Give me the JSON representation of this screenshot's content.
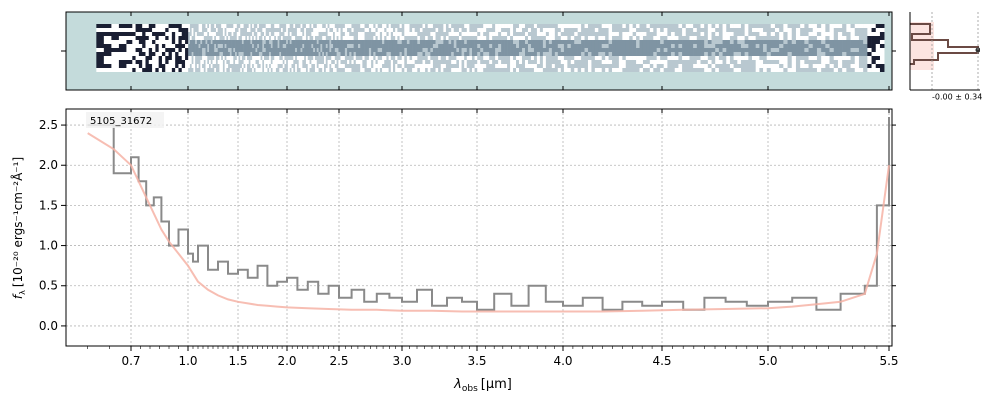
{
  "chart_data": [
    {
      "type": "image",
      "panel": "2d-spectrum",
      "colormap": [
        "#c4dbdb",
        "#ffffff",
        "#1a1f33"
      ],
      "background": "#c4dbdb",
      "xlim": [
        0.55,
        5.55
      ]
    },
    {
      "type": "line",
      "panel": "profile",
      "annotation": "-0.00 ± 0.34",
      "colors": {
        "profile": "#6b4a44",
        "fill": "#f6b3a6"
      }
    },
    {
      "type": "line",
      "panel": "1d-spectrum",
      "object_label": "5105_31672",
      "xlabel_prefix": "λ",
      "xlabel_sub": "obs",
      "xlabel_unit": "[μm]",
      "ylabel_prefix": "f",
      "ylabel_sub": "λ",
      "ylabel_unit": "[10⁻²⁰ ergs⁻¹cm⁻²Å⁻¹]",
      "xscale": "piecewise (dense at short wavelengths)",
      "xlim": [
        0.55,
        5.55
      ],
      "ylim": [
        -0.25,
        2.7
      ],
      "xticks": [
        "0.7",
        "1.0",
        "1.5",
        "2.0",
        "2.5",
        "3.0",
        "3.5",
        "4.0",
        "4.5",
        "5.0",
        "5.5"
      ],
      "yticks": [
        "0.0",
        "0.5",
        "1.0",
        "1.5",
        "2.0",
        "2.5"
      ],
      "grid": true,
      "series": [
        {
          "color": "#8a8a8a",
          "style": "steps",
          "x": [
            0.6,
            0.66,
            0.7,
            0.74,
            0.78,
            0.82,
            0.86,
            0.9,
            0.95,
            1.0,
            1.05,
            1.1,
            1.2,
            1.3,
            1.4,
            1.5,
            1.6,
            1.7,
            1.8,
            1.9,
            2.0,
            2.1,
            2.2,
            2.3,
            2.4,
            2.5,
            2.6,
            2.7,
            2.8,
            2.9,
            3.0,
            3.1,
            3.2,
            3.3,
            3.4,
            3.5,
            3.6,
            3.7,
            3.8,
            3.9,
            4.0,
            4.1,
            4.2,
            4.3,
            4.4,
            4.5,
            4.6,
            4.7,
            4.8,
            4.9,
            5.0,
            5.1,
            5.2,
            5.3,
            5.4,
            5.45,
            5.5
          ],
          "y": [
            2.5,
            1.9,
            2.1,
            1.8,
            1.5,
            1.6,
            1.3,
            1.0,
            1.2,
            0.9,
            0.8,
            1.0,
            0.7,
            0.8,
            0.65,
            0.7,
            0.6,
            0.75,
            0.5,
            0.55,
            0.6,
            0.45,
            0.55,
            0.4,
            0.5,
            0.35,
            0.45,
            0.3,
            0.4,
            0.35,
            0.3,
            0.45,
            0.25,
            0.35,
            0.3,
            0.2,
            0.4,
            0.25,
            0.5,
            0.3,
            0.25,
            0.35,
            0.2,
            0.3,
            0.25,
            0.3,
            0.2,
            0.35,
            0.3,
            0.25,
            0.3,
            0.35,
            0.2,
            0.4,
            0.5,
            1.5,
            2.6
          ]
        },
        {
          "color": "#f6b3a6",
          "style": "line",
          "x": [
            0.6,
            0.66,
            0.7,
            0.74,
            0.78,
            0.82,
            0.86,
            0.9,
            0.95,
            1.0,
            1.05,
            1.1,
            1.2,
            1.3,
            1.4,
            1.5,
            1.6,
            1.7,
            1.8,
            1.9,
            2.0,
            2.2,
            2.4,
            2.6,
            2.8,
            3.0,
            3.2,
            3.4,
            3.6,
            3.8,
            4.0,
            4.2,
            4.4,
            4.6,
            4.8,
            5.0,
            5.1,
            5.2,
            5.3,
            5.4,
            5.45,
            5.5
          ],
          "y": [
            2.4,
            2.2,
            2.0,
            1.8,
            1.6,
            1.4,
            1.2,
            1.05,
            0.9,
            0.75,
            0.65,
            0.55,
            0.45,
            0.38,
            0.33,
            0.3,
            0.28,
            0.26,
            0.25,
            0.24,
            0.23,
            0.22,
            0.21,
            0.2,
            0.2,
            0.19,
            0.19,
            0.18,
            0.18,
            0.18,
            0.18,
            0.18,
            0.19,
            0.2,
            0.21,
            0.22,
            0.24,
            0.27,
            0.3,
            0.4,
            0.9,
            2.0
          ]
        }
      ]
    }
  ]
}
